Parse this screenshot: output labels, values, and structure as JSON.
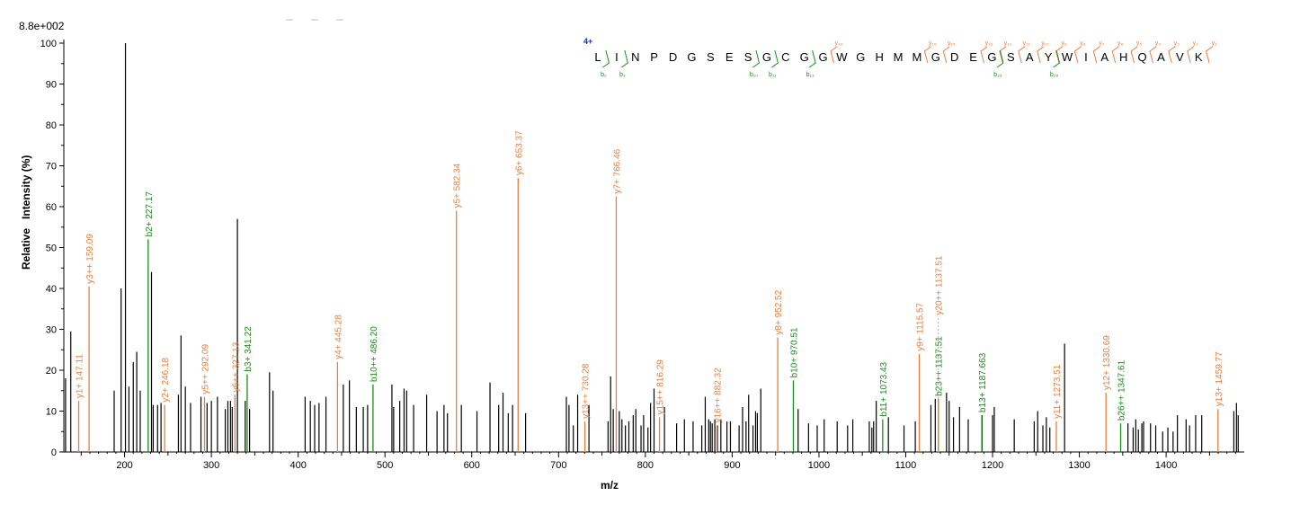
{
  "chart_data": {
    "type": "bar",
    "max_intensity_label": "8.8e+002",
    "xlabel": "m/z",
    "ylabel": "Relative   Intensity (%)",
    "xlim": [
      130,
      1490
    ],
    "ylim": [
      0,
      100
    ],
    "x_ticks": [
      200,
      300,
      400,
      500,
      600,
      700,
      800,
      900,
      1000,
      1100,
      1200,
      1300,
      1400
    ],
    "y_ticks": [
      0,
      10,
      20,
      30,
      40,
      50,
      60,
      70,
      80,
      90,
      100
    ],
    "colors": {
      "y_ion": "#e87e3e",
      "b_ion": "#1c8a1c",
      "unassigned": "#000000",
      "charge": "#1a2fa0"
    },
    "annotated_peaks": [
      {
        "mz": 147.11,
        "intensity": 12.5,
        "label": "y1+ 147.11",
        "ion": "y"
      },
      {
        "mz": 159.09,
        "intensity": 40.5,
        "label": "y3++ 159.09",
        "ion": "y"
      },
      {
        "mz": 227.17,
        "intensity": 52.0,
        "label": "b2+ 227.17",
        "ion": "b"
      },
      {
        "mz": 246.18,
        "intensity": 11.5,
        "label": "y2+ 246.18",
        "ion": "y"
      },
      {
        "mz": 292.09,
        "intensity": 13.5,
        "label": "y5++ 292.09",
        "ion": "y"
      },
      {
        "mz": 327.13,
        "intensity": 14.0,
        "label": "y6++ 327.13",
        "ion": "y"
      },
      {
        "mz": 341.22,
        "intensity": 19.0,
        "label": "b3+ 341.22",
        "ion": "b"
      },
      {
        "mz": 445.28,
        "intensity": 22.0,
        "label": "y4+ 445.28",
        "ion": "y"
      },
      {
        "mz": 486.2,
        "intensity": 16.5,
        "label": "b10++ 486.20",
        "ion": "b"
      },
      {
        "mz": 582.34,
        "intensity": 59.0,
        "label": "y5+ 582.34",
        "ion": "y"
      },
      {
        "mz": 653.37,
        "intensity": 67.0,
        "label": "y6+ 653.37",
        "ion": "y"
      },
      {
        "mz": 730.28,
        "intensity": 7.5,
        "label": "y13++ 730.28",
        "ion": "y"
      },
      {
        "mz": 766.46,
        "intensity": 62.5,
        "label": "y7+ 766.46",
        "ion": "y"
      },
      {
        "mz": 816.29,
        "intensity": 8.5,
        "label": "y15++ 816.29",
        "ion": "y"
      },
      {
        "mz": 882.32,
        "intensity": 6.5,
        "label": "y16++ 882.32",
        "ion": "y"
      },
      {
        "mz": 952.52,
        "intensity": 28.0,
        "label": "y8+ 952.52",
        "ion": "y"
      },
      {
        "mz": 970.51,
        "intensity": 17.5,
        "label": "b10+ 970.51",
        "ion": "b"
      },
      {
        "mz": 1073.43,
        "intensity": 8.0,
        "label": "b11+ 1073.43",
        "ion": "b"
      },
      {
        "mz": 1115.57,
        "intensity": 24.0,
        "label": "y9+ 1115.57",
        "ion": "y"
      },
      {
        "mz": 1137.51,
        "intensity": 13.0,
        "label": "b23++ 1137.51",
        "ion": "b"
      },
      {
        "mz": 1137.51,
        "intensity": 13.0,
        "label": "y20++ 1137.51",
        "ion": "y",
        "text_y": 33.5
      },
      {
        "mz": 1187.663,
        "intensity": 9.0,
        "label": "b13+ 1187.663",
        "ion": "b"
      },
      {
        "mz": 1273.51,
        "intensity": 7.5,
        "label": "y11+ 1273.51",
        "ion": "y"
      },
      {
        "mz": 1330.69,
        "intensity": 14.5,
        "label": "y12+ 1330.69",
        "ion": "y"
      },
      {
        "mz": 1347.61,
        "intensity": 7.0,
        "label": "b26++ 1347.61",
        "ion": "b"
      },
      {
        "mz": 1459.77,
        "intensity": 10.5,
        "label": "y13+ 1459.77",
        "ion": "y"
      }
    ],
    "peaks": [
      [
        132,
        18
      ],
      [
        138,
        29.5
      ],
      [
        188,
        15
      ],
      [
        196,
        40
      ],
      [
        201,
        100
      ],
      [
        205,
        16
      ],
      [
        210,
        22
      ],
      [
        214,
        24.5
      ],
      [
        218,
        15
      ],
      [
        231,
        44
      ],
      [
        233,
        11.5
      ],
      [
        238,
        11.5
      ],
      [
        242,
        12
      ],
      [
        262,
        14
      ],
      [
        265,
        28.5
      ],
      [
        270,
        16
      ],
      [
        276,
        12
      ],
      [
        288,
        13.5
      ],
      [
        295,
        12
      ],
      [
        300,
        12.5
      ],
      [
        307,
        13.5
      ],
      [
        316,
        10.5
      ],
      [
        319,
        12.5
      ],
      [
        322,
        12.5
      ],
      [
        324,
        11
      ],
      [
        330,
        57
      ],
      [
        339,
        12.5
      ],
      [
        344,
        10.5
      ],
      [
        367,
        19.5
      ],
      [
        371,
        15
      ],
      [
        408,
        13.5
      ],
      [
        414,
        12.5
      ],
      [
        419,
        11.5
      ],
      [
        424,
        12
      ],
      [
        432,
        13.5
      ],
      [
        452,
        16.5
      ],
      [
        459,
        17.5
      ],
      [
        467,
        11
      ],
      [
        475,
        11
      ],
      [
        480,
        11.5
      ],
      [
        508,
        16.5
      ],
      [
        510,
        11
      ],
      [
        517,
        12.5
      ],
      [
        522,
        15.5
      ],
      [
        525,
        15
      ],
      [
        533,
        11.5
      ],
      [
        548,
        14
      ],
      [
        560,
        10
      ],
      [
        568,
        11.5
      ],
      [
        572,
        9.5
      ],
      [
        588,
        11.5
      ],
      [
        606,
        10
      ],
      [
        621,
        17
      ],
      [
        631,
        11.5
      ],
      [
        636,
        14.5
      ],
      [
        642,
        9.5
      ],
      [
        647,
        11.5
      ],
      [
        662,
        9.5
      ],
      [
        709,
        13.5
      ],
      [
        712,
        11.5
      ],
      [
        717,
        6.5
      ],
      [
        722,
        14
      ],
      [
        735,
        11.5
      ],
      [
        757,
        7.5
      ],
      [
        760,
        18.5
      ],
      [
        763,
        10.5
      ],
      [
        770,
        10
      ],
      [
        773,
        8
      ],
      [
        777,
        6.5
      ],
      [
        781,
        7.5
      ],
      [
        786,
        9
      ],
      [
        789,
        10.5
      ],
      [
        795,
        6.5
      ],
      [
        798,
        9
      ],
      [
        803,
        6
      ],
      [
        806,
        12
      ],
      [
        810,
        15.5
      ],
      [
        822,
        11
      ],
      [
        836,
        7
      ],
      [
        845,
        8
      ],
      [
        855,
        7.5
      ],
      [
        865,
        6.5
      ],
      [
        869,
        13.5
      ],
      [
        873,
        8
      ],
      [
        875,
        7.5
      ],
      [
        877,
        7
      ],
      [
        880,
        8
      ],
      [
        883,
        6.5
      ],
      [
        887,
        8
      ],
      [
        894,
        7.5
      ],
      [
        898,
        7.5
      ],
      [
        908,
        6.5
      ],
      [
        912,
        11
      ],
      [
        916,
        7.5
      ],
      [
        919,
        14
      ],
      [
        924,
        6.5
      ],
      [
        927,
        10
      ],
      [
        929,
        9.5
      ],
      [
        933,
        15.5
      ],
      [
        976,
        10.5
      ],
      [
        988,
        7
      ],
      [
        998,
        6.5
      ],
      [
        1006,
        8
      ],
      [
        1021,
        7.5
      ],
      [
        1033,
        6.5
      ],
      [
        1039,
        8
      ],
      [
        1058,
        7.5
      ],
      [
        1061,
        6
      ],
      [
        1063,
        7.5
      ],
      [
        1066,
        12.5
      ],
      [
        1080,
        8.5
      ],
      [
        1098,
        6.5
      ],
      [
        1111,
        7.5
      ],
      [
        1129,
        11.5
      ],
      [
        1134,
        13
      ],
      [
        1147,
        14.5
      ],
      [
        1150,
        12.5
      ],
      [
        1155,
        8.5
      ],
      [
        1162,
        11
      ],
      [
        1172,
        8
      ],
      [
        1188,
        9
      ],
      [
        1200,
        9
      ],
      [
        1202,
        11
      ],
      [
        1225,
        8
      ],
      [
        1248,
        7.5
      ],
      [
        1252,
        10
      ],
      [
        1258,
        6.5
      ],
      [
        1262,
        8.5
      ],
      [
        1266,
        6
      ],
      [
        1283,
        26.5
      ],
      [
        1356,
        7
      ],
      [
        1362,
        6
      ],
      [
        1365,
        8
      ],
      [
        1368,
        5.5
      ],
      [
        1372,
        7
      ],
      [
        1374,
        7.5
      ],
      [
        1382,
        7
      ],
      [
        1388,
        6.5
      ],
      [
        1396,
        5
      ],
      [
        1402,
        6
      ],
      [
        1408,
        5
      ],
      [
        1413,
        9
      ],
      [
        1423,
        8
      ],
      [
        1427,
        6.5
      ],
      [
        1434,
        9
      ],
      [
        1441,
        9
      ],
      [
        1478,
        10
      ],
      [
        1481,
        12
      ],
      [
        1483,
        9
      ]
    ],
    "sequence": {
      "charge": "4+",
      "residues": [
        "L",
        "I",
        "N",
        "P",
        "D",
        "G",
        "S",
        "E",
        "S",
        "G",
        "C",
        "G",
        "G",
        "W",
        "G",
        "H",
        "M",
        "M",
        "G",
        "D",
        "E",
        "G",
        "S",
        "A",
        "Y",
        "W",
        "I",
        "A",
        "H",
        "Q",
        "A",
        "V",
        "K"
      ],
      "y_fragments": [
        {
          "after": 13,
          "label": "y₂₀"
        },
        {
          "after": 18,
          "label": "y₁₆"
        },
        {
          "after": 19,
          "label": "y₁₅"
        },
        {
          "after": 21,
          "label": "y₁₃"
        },
        {
          "after": 22,
          "label": "y₁₂"
        },
        {
          "after": 23,
          "label": "y₁₁"
        },
        {
          "after": 24,
          "label": "y₁₀"
        },
        {
          "after": 25,
          "label": "y₉"
        },
        {
          "after": 26,
          "label": "y₈"
        },
        {
          "after": 27,
          "label": "y₇"
        },
        {
          "after": 28,
          "label": "y₆"
        },
        {
          "after": 29,
          "label": "y₅"
        },
        {
          "after": 30,
          "label": "y₄"
        },
        {
          "after": 31,
          "label": "y₃"
        },
        {
          "after": 32,
          "label": "y₂"
        },
        {
          "after": 33,
          "label": "y₁"
        }
      ],
      "b_fragments": [
        {
          "after": 1,
          "label": "b₂"
        },
        {
          "after": 2,
          "label": "b₃"
        },
        {
          "after": 9,
          "label": "b₁₀"
        },
        {
          "after": 10,
          "label": "b₁₁"
        },
        {
          "after": 12,
          "label": "b₁₃"
        },
        {
          "after": 22,
          "label": "b₂₃"
        },
        {
          "after": 25,
          "label": "b₂₆"
        }
      ]
    }
  }
}
